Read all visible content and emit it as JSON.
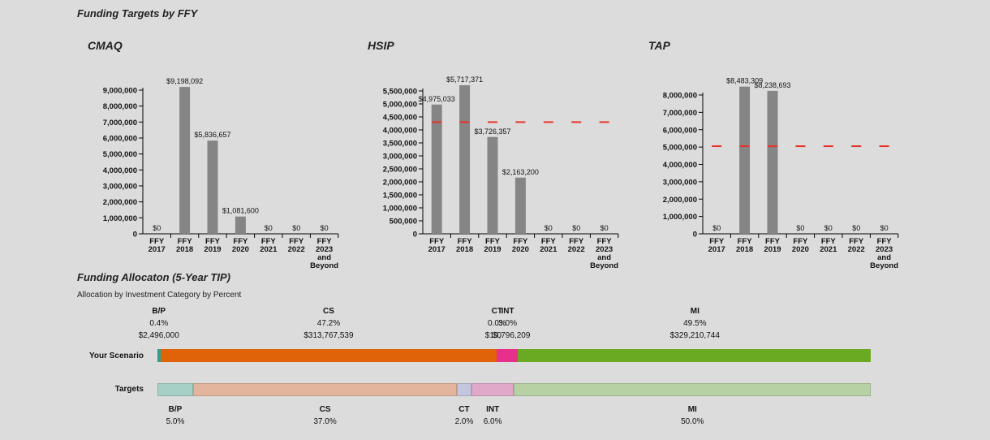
{
  "section1_title": "Funding Targets by FFY",
  "section2_title": "Funding Allocaton (5-Year TIP)",
  "subtitle": "Allocation by Investment Category by Percent",
  "colors": {
    "bar": "#858585",
    "target_line": "#e8332a"
  },
  "chart_data": [
    {
      "type": "bar",
      "title": "CMAQ",
      "categories": [
        [
          "FFY",
          "2017"
        ],
        [
          "FFY",
          "2018"
        ],
        [
          "FFY",
          "2019"
        ],
        [
          "FFY",
          "2020"
        ],
        [
          "FFY",
          "2021"
        ],
        [
          "FFY",
          "2022"
        ],
        [
          "FFY",
          "2023",
          "and",
          "Beyond"
        ]
      ],
      "values": [
        0,
        9198092,
        5836657,
        1081600,
        0,
        0,
        0
      ],
      "value_labels": [
        "$0",
        "$9,198,092",
        "$5,836,657",
        "$1,081,600",
        "$0",
        "$0",
        "$0"
      ],
      "ylim": [
        0,
        9000000
      ],
      "yticks": [
        0,
        1000000,
        2000000,
        3000000,
        4000000,
        5000000,
        6000000,
        7000000,
        8000000,
        9000000
      ],
      "ytick_labels": [
        "0",
        "1,000,000",
        "2,000,000",
        "3,000,000",
        "4,000,000",
        "5,000,000",
        "6,000,000",
        "7,000,000",
        "8,000,000",
        "9,000,000"
      ],
      "target": null
    },
    {
      "type": "bar",
      "title": "HSIP",
      "categories": [
        [
          "FFY",
          "2017"
        ],
        [
          "FFY",
          "2018"
        ],
        [
          "FFY",
          "2019"
        ],
        [
          "FFY",
          "2020"
        ],
        [
          "FFY",
          "2021"
        ],
        [
          "FFY",
          "2022"
        ],
        [
          "FFY",
          "2023",
          "and",
          "Beyond"
        ]
      ],
      "values": [
        4975033,
        5717371,
        3726357,
        2163200,
        0,
        0,
        0
      ],
      "value_labels": [
        "$4,975,033",
        "$5,717,371",
        "$3,726,357",
        "$2,163,200",
        "$0",
        "$0",
        "$0"
      ],
      "ylim": [
        0,
        5500000
      ],
      "yticks": [
        0,
        500000,
        1000000,
        1500000,
        2000000,
        2500000,
        3000000,
        3500000,
        4000000,
        4500000,
        5000000,
        5500000
      ],
      "ytick_labels": [
        "0",
        "500,000",
        "1,000,000",
        "1,500,000",
        "2,000,000",
        "2,500,000",
        "3,000,000",
        "3,500,000",
        "4,000,000",
        "4,500,000",
        "5,000,000",
        "5,500,000"
      ],
      "target": 4300000
    },
    {
      "type": "bar",
      "title": "TAP",
      "categories": [
        [
          "FFY",
          "2017"
        ],
        [
          "FFY",
          "2018"
        ],
        [
          "FFY",
          "2019"
        ],
        [
          "FFY",
          "2020"
        ],
        [
          "FFY",
          "2021"
        ],
        [
          "FFY",
          "2022"
        ],
        [
          "FFY",
          "2023",
          "and",
          "Beyond"
        ]
      ],
      "values": [
        0,
        8483309,
        8238693,
        0,
        0,
        0,
        0
      ],
      "value_labels": [
        "$0",
        "$8,483,309",
        "$8,238,693",
        "$0",
        "$0",
        "$0",
        "$0"
      ],
      "ylim": [
        0,
        8000000
      ],
      "yticks": [
        0,
        1000000,
        2000000,
        3000000,
        4000000,
        5000000,
        6000000,
        7000000,
        8000000
      ],
      "ytick_labels": [
        "0",
        "1,000,000",
        "2,000,000",
        "3,000,000",
        "4,000,000",
        "5,000,000",
        "6,000,000",
        "7,000,000",
        "8,000,000"
      ],
      "target": 5050000
    }
  ],
  "allocation": {
    "scenario_label": "Your Scenario",
    "targets_label": "Targets",
    "scenario": [
      {
        "name": "B/P",
        "percent": "0.4%",
        "amount": "$2,496,000",
        "value": 0.4,
        "color": "#2f9e8f"
      },
      {
        "name": "CS",
        "percent": "47.2%",
        "amount": "$313,767,539",
        "value": 47.2,
        "color": "#e0630a"
      },
      {
        "name": "CT",
        "percent": "0.0%",
        "amount": "$0",
        "value": 0.0,
        "color": "#8c8fd6"
      },
      {
        "name": "INT",
        "percent": "3.0%",
        "amount": "$19,796,209",
        "value": 3.0,
        "color": "#e6308a"
      },
      {
        "name": "MI",
        "percent": "49.5%",
        "amount": "$329,210,744",
        "value": 49.5,
        "color": "#6aaa22"
      }
    ],
    "targets": [
      {
        "name": "B/P",
        "percent": "5.0%",
        "value": 5.0,
        "color": "#a6d0c6"
      },
      {
        "name": "CS",
        "percent": "37.0%",
        "value": 37.0,
        "color": "#e3b59c"
      },
      {
        "name": "CT",
        "percent": "2.0%",
        "value": 2.0,
        "color": "#c4c5de"
      },
      {
        "name": "INT",
        "percent": "6.0%",
        "value": 6.0,
        "color": "#e1a9c9"
      },
      {
        "name": "MI",
        "percent": "50.0%",
        "value": 50.0,
        "color": "#b7d1a4"
      }
    ]
  }
}
